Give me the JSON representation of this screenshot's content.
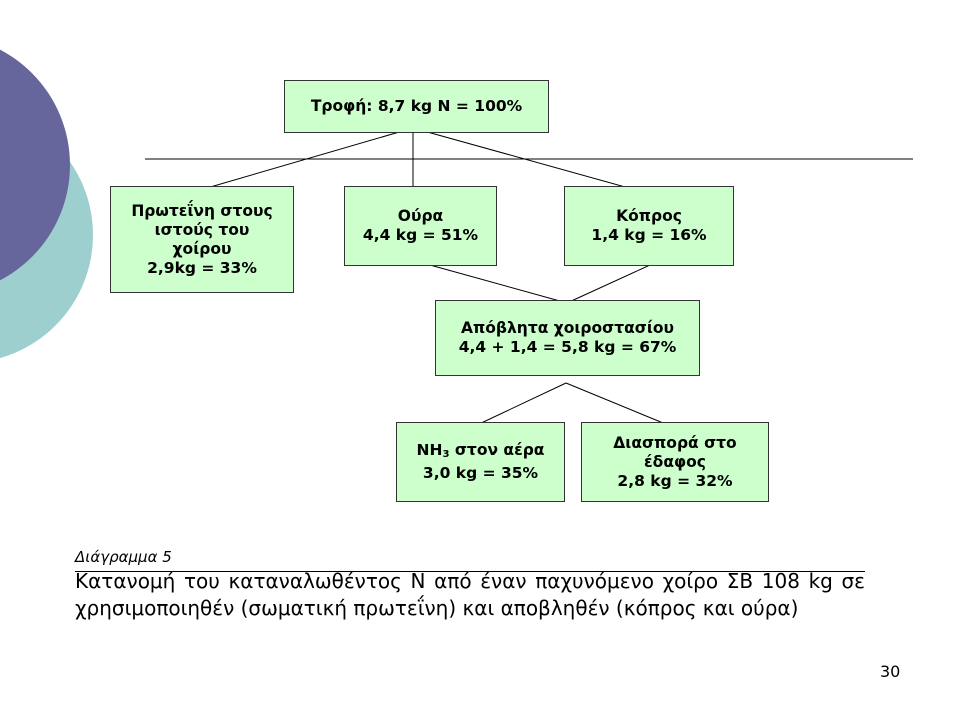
{
  "colors": {
    "box_fill": "#ccffcc",
    "circle_dark": "#67669c",
    "circle_light": "#9ecfcf"
  },
  "nodes": {
    "feed": {
      "lines": [
        "Τροφή: 8,7 kg N = 100%"
      ]
    },
    "protein": {
      "lines": [
        "Πρωτεΐνη στους",
        "ιστούς του",
        "χοίρου",
        "2,9kg = 33%"
      ]
    },
    "urine": {
      "lines": [
        "Ούρα",
        "4,4 kg = 51%"
      ]
    },
    "manure": {
      "lines": [
        "Κόπρος",
        "1,4 kg  = 16%"
      ]
    },
    "waste": {
      "lines": [
        "Απόβλητα χοιροστασίου",
        "4,4 + 1,4 = 5,8 kg = 67%"
      ]
    },
    "air": {
      "line1_main": "NH",
      "line1_sub": "3",
      "line1_rest": " στον αέρα",
      "line2": "3,0 kg = 35%"
    },
    "soil": {
      "lines": [
        "Διασπορά στο",
        "έδαφος",
        "2,8 kg = 32%"
      ]
    }
  },
  "caption": {
    "title": "Διάγραμμα 5",
    "text": "Κατανομή του καταναλωθέντος N από έναν παχυνόμενο χοίρο ΣΒ 108 kg σε χρησιμοποιηθέν (σωματική πρωτεΐνη) και αποβληθέν (κόπρος και ούρα)"
  },
  "page_number": "30"
}
